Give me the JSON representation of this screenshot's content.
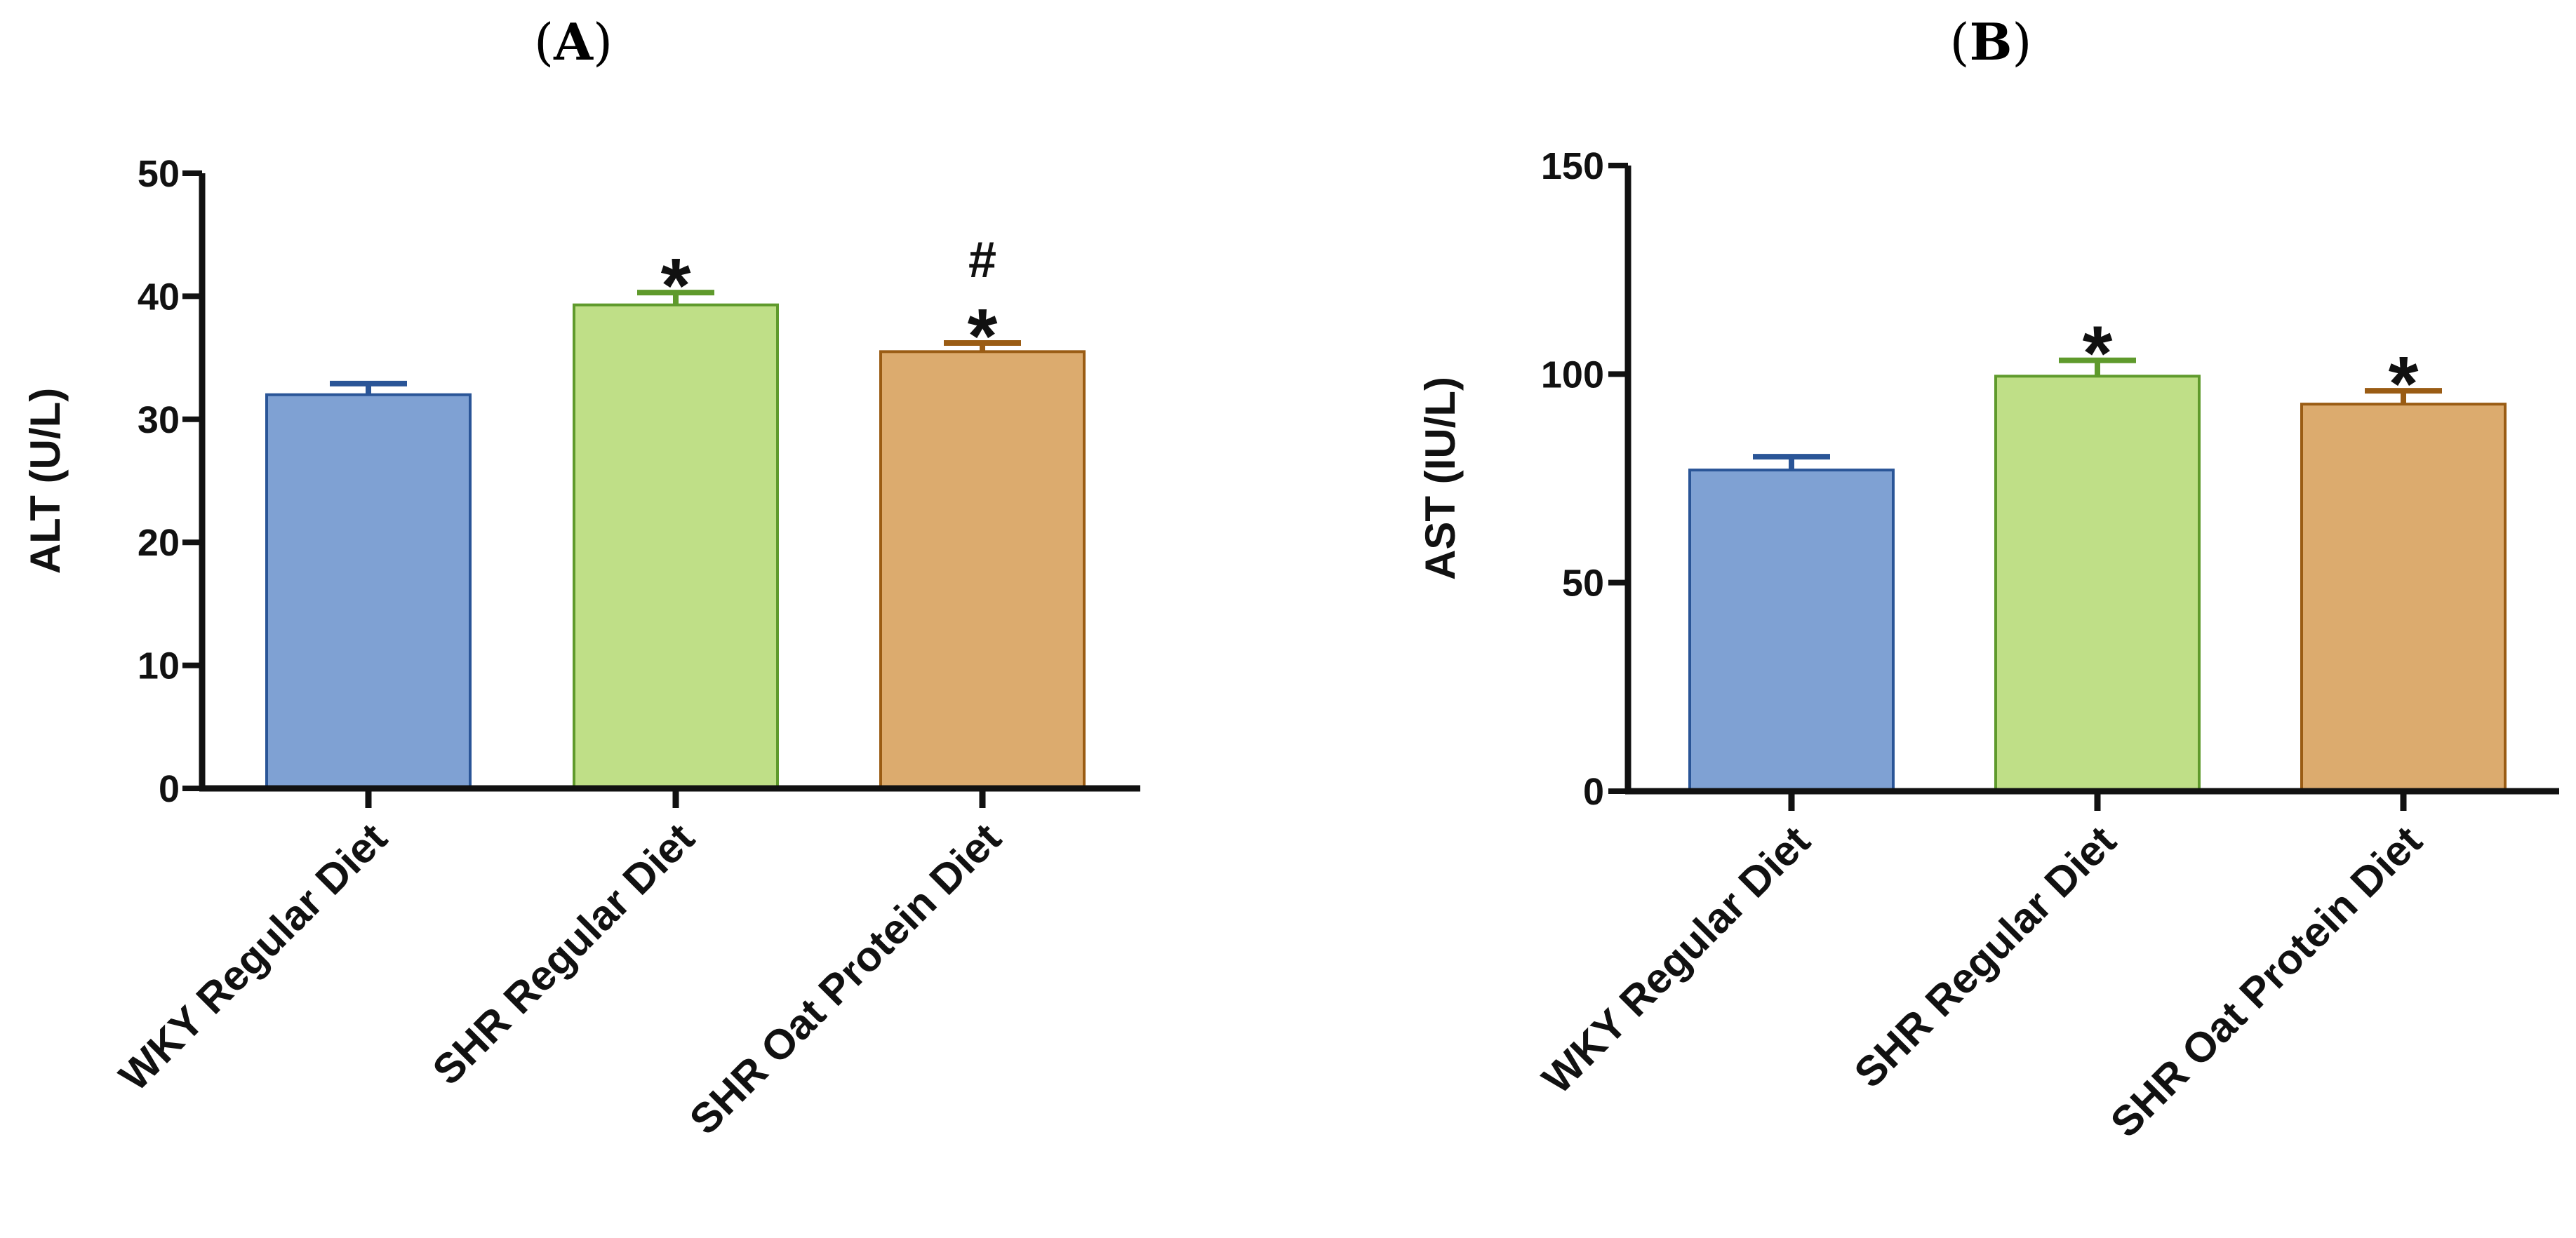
{
  "chart_data": [
    {
      "type": "bar",
      "panel_label": "A",
      "categories": [
        "WKY Regular Diet",
        "SHR Regular Diet",
        "SHR Oat Protein Diet"
      ],
      "values": [
        32,
        39.3,
        35.5
      ],
      "errors": [
        0.9,
        1.0,
        0.7
      ],
      "annotations": [
        [],
        [
          "*"
        ],
        [
          "*",
          "#"
        ]
      ],
      "ylabel": "ALT (U/L)",
      "xlabel": "",
      "ylim": [
        0,
        50
      ],
      "yticks": [
        0,
        10,
        20,
        30,
        40,
        50
      ],
      "grid": false,
      "legend": "none"
    },
    {
      "type": "bar",
      "panel_label": "B",
      "categories": [
        "WKY Regular Diet",
        "SHR Regular Diet",
        "SHR Oat Protein Diet"
      ],
      "values": [
        77,
        99.5,
        92.8
      ],
      "errors": [
        3.2,
        3.8,
        3.2
      ],
      "annotations": [
        [],
        [
          "*"
        ],
        [
          "*"
        ]
      ],
      "ylabel": "AST (IU/L)",
      "xlabel": "",
      "ylim": [
        0,
        150
      ],
      "yticks": [
        0,
        50,
        100,
        150
      ],
      "grid": false,
      "legend": "none"
    }
  ],
  "colors": {
    "fills": [
      "#7fa1d3",
      "#bfdf87",
      "#dcab6e"
    ],
    "edges": [
      "#2a5597",
      "#5f9a2c",
      "#9a5c14"
    ],
    "axis": "#111111"
  }
}
